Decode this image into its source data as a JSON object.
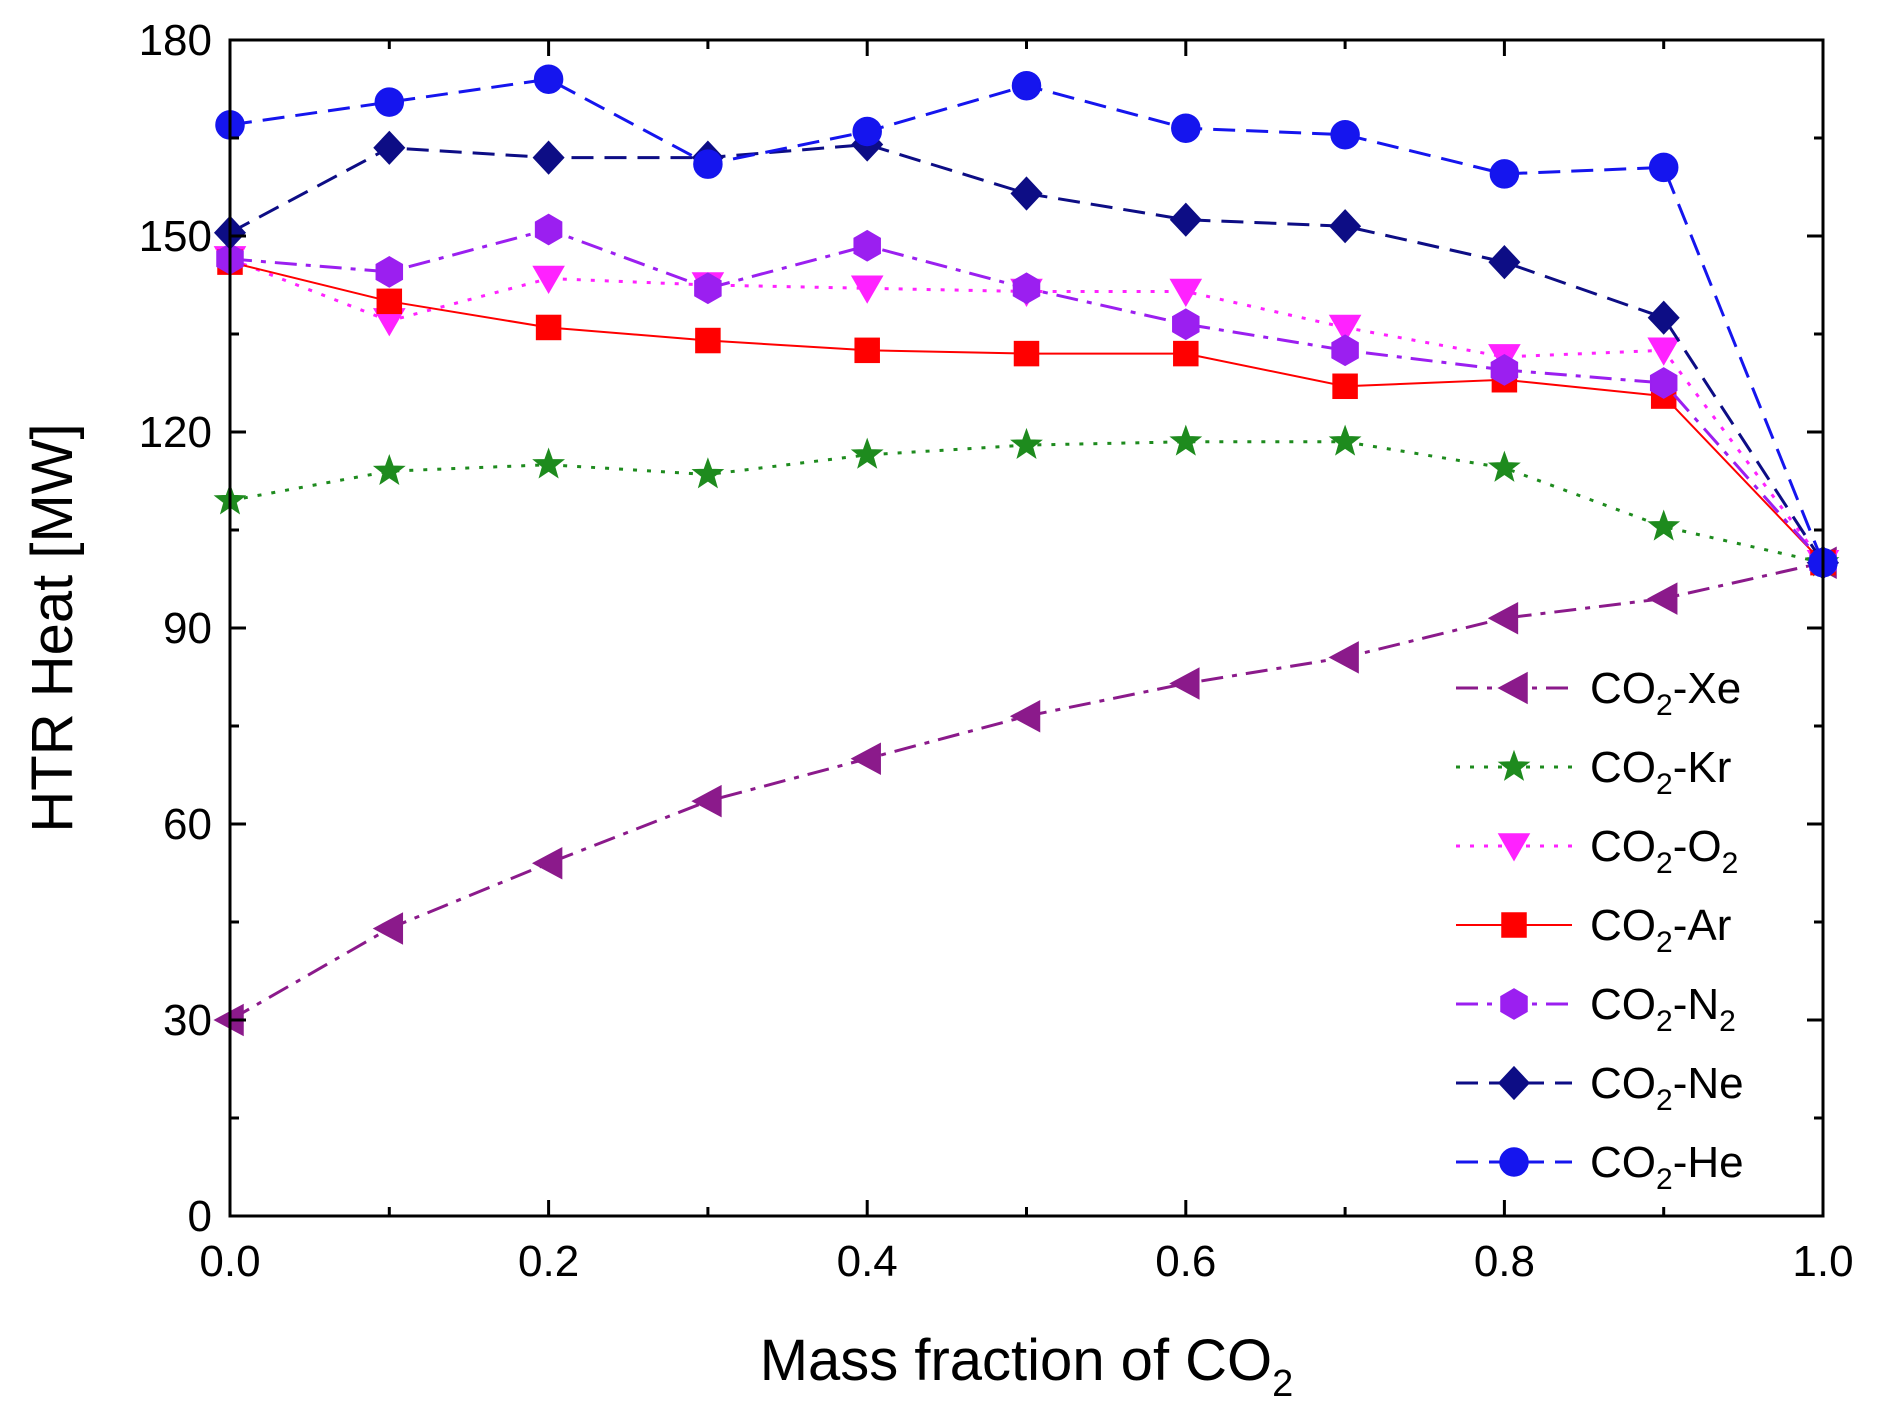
{
  "chart_data": {
    "type": "line",
    "xlabel": "Mass fraction of CO",
    "xlabel_sub": "2",
    "ylabel": "HTR Heat [MW]",
    "xlim": [
      0,
      1
    ],
    "ylim": [
      0,
      180
    ],
    "xticks": [
      "0.0",
      "0.2",
      "0.4",
      "0.6",
      "0.8",
      "1.0"
    ],
    "yticks": [
      "0",
      "30",
      "60",
      "90",
      "120",
      "150",
      "180"
    ],
    "x": [
      0,
      0.1,
      0.2,
      0.3,
      0.4,
      0.5,
      0.6,
      0.7,
      0.8,
      0.9,
      1.0
    ],
    "legend_position": "right",
    "series": [
      {
        "name": "CO",
        "sub": "2",
        "suffix": "-Xe",
        "suffix_sub": "",
        "color": "#8B1A8B",
        "dash": "dashdot",
        "marker": "triangle-left",
        "values": [
          30,
          44,
          54,
          63.5,
          70,
          76.5,
          81.5,
          85.5,
          91.5,
          94.5,
          100
        ]
      },
      {
        "name": "CO",
        "sub": "2",
        "suffix": "-Kr",
        "suffix_sub": "",
        "color": "#1E8B1E",
        "dash": "dot",
        "marker": "star",
        "values": [
          109.5,
          114,
          115,
          113.5,
          116.5,
          118,
          118.5,
          118.5,
          114.5,
          105.5,
          100
        ]
      },
      {
        "name": "CO",
        "sub": "2",
        "suffix": "-O",
        "suffix_sub": "2",
        "color": "#FF22FF",
        "dash": "dot",
        "marker": "triangle-down",
        "values": [
          146.5,
          137,
          143.5,
          142.5,
          142,
          141.5,
          141.5,
          136,
          131.5,
          132.5,
          100
        ]
      },
      {
        "name": "CO",
        "sub": "2",
        "suffix": "-Ar",
        "suffix_sub": "",
        "color": "#FF0000",
        "dash": "solid",
        "marker": "square",
        "values": [
          146,
          140,
          136,
          134,
          132.5,
          132,
          132,
          127,
          128,
          125.5,
          100
        ]
      },
      {
        "name": "CO",
        "sub": "2",
        "suffix": "-N",
        "suffix_sub": "2",
        "color": "#9B1FF0",
        "dash": "dashdot",
        "marker": "hexagon",
        "values": [
          146.5,
          144.5,
          151,
          142,
          148.5,
          142,
          136.5,
          132.5,
          129.5,
          127.5,
          100
        ]
      },
      {
        "name": "CO",
        "sub": "2",
        "suffix": "-Ne",
        "suffix_sub": "",
        "color": "#0D0D85",
        "dash": "dash",
        "marker": "diamond",
        "values": [
          150.5,
          163.5,
          162,
          162,
          164,
          156.5,
          152.5,
          151.5,
          146,
          137.5,
          100
        ]
      },
      {
        "name": "CO",
        "sub": "2",
        "suffix": "-He",
        "suffix_sub": "",
        "color": "#1515EE",
        "dash": "dash",
        "marker": "circle",
        "values": [
          167,
          170.5,
          174,
          161,
          166,
          173,
          166.5,
          165.5,
          159.5,
          160.5,
          100
        ]
      }
    ]
  }
}
